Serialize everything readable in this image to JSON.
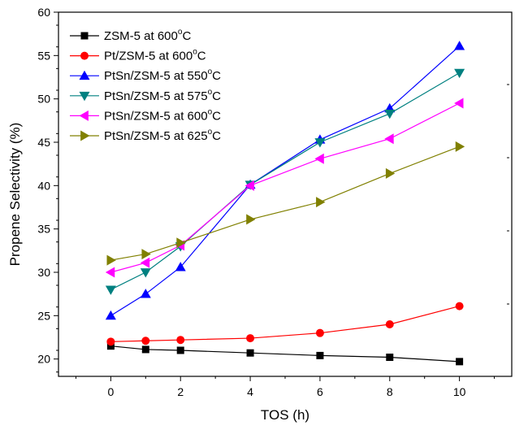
{
  "chart_data": {
    "type": "line",
    "xlabel": "TOS (h)",
    "ylabel": "Propene Selectivity (%)",
    "xlim": [
      -1.5,
      11.5
    ],
    "ylim": [
      18,
      60
    ],
    "x_ticks": [
      0,
      2,
      4,
      6,
      8,
      10
    ],
    "y_ticks": [
      20,
      25,
      30,
      35,
      40,
      45,
      50,
      55,
      60
    ],
    "grid": false,
    "legend_position": "top-left",
    "series": [
      {
        "name": "ZSM-5 at 600°C",
        "label_main": "ZSM-5 at 600",
        "label_sup": "o",
        "label_end": "C",
        "marker": "square",
        "color": "#000000",
        "x": [
          0,
          1,
          2,
          4,
          6,
          8,
          10
        ],
        "values": [
          21.5,
          21.1,
          21.0,
          20.7,
          20.4,
          20.2,
          19.7
        ]
      },
      {
        "name": "Pt/ZSM-5 at 600°C",
        "label_main": "Pt/ZSM-5 at 600",
        "label_sup": "o",
        "label_end": "C",
        "marker": "circle",
        "color": "#ff0000",
        "x": [
          0,
          1,
          2,
          4,
          6,
          8,
          10
        ],
        "values": [
          22.0,
          22.1,
          22.2,
          22.4,
          23.0,
          24.0,
          26.1
        ]
      },
      {
        "name": "PtSn/ZSM-5 at 550°C",
        "label_main": "PtSn/ZSM-5 at 550",
        "label_sup": "o",
        "label_end": "C",
        "marker": "triangle-up",
        "color": "#0000ff",
        "x": [
          0,
          1,
          2,
          4,
          6,
          8,
          10
        ],
        "values": [
          25.0,
          27.5,
          30.6,
          40.1,
          45.3,
          48.9,
          56.1
        ]
      },
      {
        "name": "PtSn/ZSM-5 at 575°C",
        "label_main": "PtSn/ZSM-5 at 575",
        "label_sup": "o",
        "label_end": "C",
        "marker": "triangle-down",
        "color": "#008080",
        "x": [
          0,
          1,
          2,
          4,
          6,
          8,
          10
        ],
        "values": [
          28.0,
          30.0,
          33.0,
          40.1,
          45.0,
          48.3,
          53.0
        ]
      },
      {
        "name": "PtSn/ZSM-5 at 600°C",
        "label_main": "PtSn/ZSM-5 at 600",
        "label_sup": "o",
        "label_end": "C",
        "marker": "triangle-left",
        "color": "#ff00ff",
        "x": [
          0,
          1,
          2,
          4,
          6,
          8,
          10
        ],
        "values": [
          30.0,
          31.1,
          33.1,
          40.0,
          43.1,
          45.4,
          49.5
        ]
      },
      {
        "name": "PtSn/ZSM-5 at 625°C",
        "label_main": "PtSn/ZSM-5 at 625",
        "label_sup": "o",
        "label_end": "C",
        "marker": "triangle-right",
        "color": "#808000",
        "x": [
          0,
          1,
          2,
          4,
          6,
          8,
          10
        ],
        "values": [
          31.4,
          32.1,
          33.4,
          36.1,
          38.1,
          41.4,
          44.5
        ]
      }
    ]
  }
}
